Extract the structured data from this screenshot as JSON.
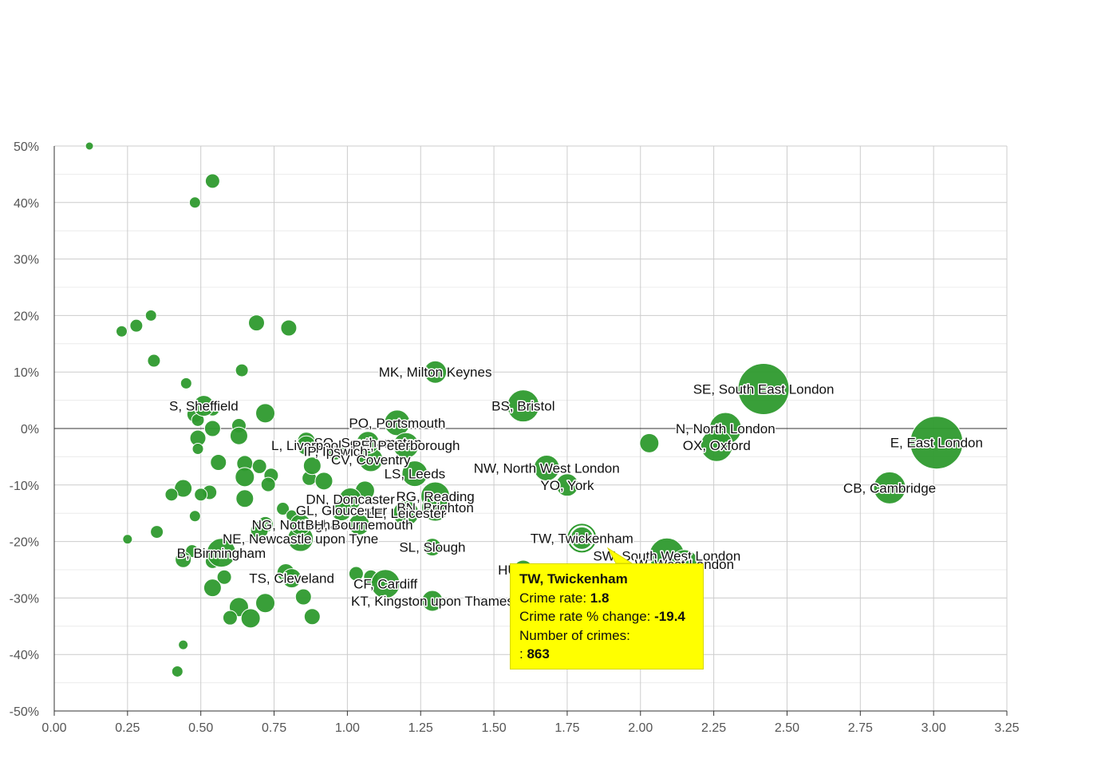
{
  "chart_data": {
    "type": "scatter",
    "variant": "bubble",
    "x_ticks": [
      "0.00",
      "0.25",
      "0.50",
      "0.75",
      "1.00",
      "1.25",
      "1.50",
      "1.75",
      "2.00",
      "2.25",
      "2.50",
      "2.75",
      "3.00",
      "3.25"
    ],
    "y_ticks": [
      "50%",
      "40%",
      "30%",
      "20%",
      "10%",
      "0%",
      "-10%",
      "-20%",
      "-30%",
      "-40%",
      "-50%"
    ],
    "xlim": [
      0,
      3.25
    ],
    "ylim": [
      -50,
      50
    ],
    "grid": true,
    "bubble_color": "#2e9a2e",
    "labeled_points": [
      {
        "label": "MK, Milton Keynes",
        "x": 1.3,
        "y": 10,
        "size": 14
      },
      {
        "label": "SE, South East London",
        "x": 2.42,
        "y": 7,
        "size": 32
      },
      {
        "label": "BS, Bristol",
        "x": 1.6,
        "y": 4,
        "size": 20
      },
      {
        "label": "S, Sheffield",
        "x": 0.51,
        "y": 4,
        "size": 13
      },
      {
        "label": "PO, Portsmouth",
        "x": 1.17,
        "y": 1,
        "size": 16
      },
      {
        "label": "N, North London",
        "x": 2.29,
        "y": 0,
        "size": 20
      },
      {
        "label": "OX, Oxford",
        "x": 2.26,
        "y": -3,
        "size": 20
      },
      {
        "label": "E, East London",
        "x": 3.01,
        "y": -2.5,
        "size": 33
      },
      {
        "label": "SO, Southampton",
        "x": 1.07,
        "y": -2.5,
        "size": 14
      },
      {
        "label": "PE, Peterborough",
        "x": 1.2,
        "y": -3,
        "size": 16
      },
      {
        "label": "L, Liverpool",
        "x": 0.86,
        "y": -3,
        "size": 12
      },
      {
        "label": "IP, Ipswich",
        "x": 0.96,
        "y": -4,
        "size": 11
      },
      {
        "label": "CV, Coventry",
        "x": 1.08,
        "y": -5.5,
        "size": 15
      },
      {
        "label": "NW, North West London",
        "x": 1.68,
        "y": -7,
        "size": 16
      },
      {
        "label": "LS, Leeds",
        "x": 1.23,
        "y": -8,
        "size": 16
      },
      {
        "label": "YO, York",
        "x": 1.75,
        "y": -10,
        "size": 14
      },
      {
        "label": "CB, Cambridge",
        "x": 2.85,
        "y": -10.5,
        "size": 20
      },
      {
        "label": "DN, Doncaster",
        "x": 1.01,
        "y": -12.5,
        "size": 14
      },
      {
        "label": "RG, Reading",
        "x": 1.3,
        "y": -12,
        "size": 18
      },
      {
        "label": "GL, Gloucester",
        "x": 0.98,
        "y": -14.5,
        "size": 13
      },
      {
        "label": "BN, Brighton",
        "x": 1.3,
        "y": -14,
        "size": 17
      },
      {
        "label": "LE, Leicester",
        "x": 1.2,
        "y": -15,
        "size": 16
      },
      {
        "label": "NG, Nottingham",
        "x": 0.84,
        "y": -17,
        "size": 13
      },
      {
        "label": "BH, Bournemouth",
        "x": 1.04,
        "y": -17,
        "size": 13
      },
      {
        "label": "NE, Newcastle upon Tyne",
        "x": 0.84,
        "y": -19.5,
        "size": 16
      },
      {
        "label": "TW, Twickenham",
        "x": 1.8,
        "y": -19.4,
        "size": 14
      },
      {
        "label": "SL, Slough",
        "x": 1.29,
        "y": -21,
        "size": 11
      },
      {
        "label": "B, Birmingham",
        "x": 0.57,
        "y": -22,
        "size": 18
      },
      {
        "label": "SW, South West London",
        "x": 2.09,
        "y": -22.5,
        "size": 22
      },
      {
        "label": "W, West London",
        "x": 2.15,
        "y": -24,
        "size": 18
      },
      {
        "label": "HU, Hull",
        "x": 1.6,
        "y": -25,
        "size": 12
      },
      {
        "label": "TS, Cleveland",
        "x": 0.81,
        "y": -26.5,
        "size": 12
      },
      {
        "label": "CF, Cardiff",
        "x": 1.13,
        "y": -27.5,
        "size": 18
      },
      {
        "label": "KT, Kingston upon Thames",
        "x": 1.29,
        "y": -30.5,
        "size": 13
      }
    ],
    "unlabeled_points": [
      [
        0.12,
        50,
        5
      ],
      [
        0.54,
        43.8,
        9
      ],
      [
        0.48,
        40,
        7
      ],
      [
        0.69,
        18.7,
        10
      ],
      [
        0.8,
        17.8,
        10
      ],
      [
        0.33,
        20,
        7
      ],
      [
        0.28,
        18.2,
        8
      ],
      [
        0.23,
        17.2,
        7
      ],
      [
        0.34,
        12,
        8
      ],
      [
        0.64,
        10.3,
        8
      ],
      [
        0.45,
        8,
        7
      ],
      [
        0.72,
        2.7,
        12
      ],
      [
        0.48,
        2.5,
        10
      ],
      [
        0.54,
        3.5,
        9
      ],
      [
        0.49,
        1.5,
        8
      ],
      [
        0.54,
        0,
        10
      ],
      [
        0.63,
        0.5,
        9
      ],
      [
        0.63,
        -1.3,
        11
      ],
      [
        0.49,
        -1.7,
        10
      ],
      [
        0.49,
        -3.6,
        7
      ],
      [
        0.56,
        -6,
        10
      ],
      [
        0.65,
        -6.2,
        10
      ],
      [
        0.7,
        -6.7,
        9
      ],
      [
        0.74,
        -8.3,
        9
      ],
      [
        0.65,
        -8.6,
        12
      ],
      [
        0.87,
        -8.8,
        9
      ],
      [
        0.92,
        -9.3,
        11
      ],
      [
        0.73,
        -9.9,
        9
      ],
      [
        0.44,
        -10.6,
        11
      ],
      [
        0.53,
        -11.3,
        9
      ],
      [
        0.5,
        -11.7,
        8
      ],
      [
        0.4,
        -11.7,
        8
      ],
      [
        0.65,
        -12.4,
        11
      ],
      [
        0.78,
        -14.2,
        8
      ],
      [
        0.81,
        -15.4,
        7
      ],
      [
        0.48,
        -15.5,
        7
      ],
      [
        0.72,
        -17,
        10
      ],
      [
        0.7,
        -18,
        11
      ],
      [
        0.35,
        -18.3,
        8
      ],
      [
        0.25,
        -19.6,
        6
      ],
      [
        0.47,
        -21.7,
        8
      ],
      [
        0.44,
        -23.2,
        10
      ],
      [
        0.54,
        -23.5,
        9
      ],
      [
        0.58,
        -26.3,
        9
      ],
      [
        0.54,
        -28.2,
        11
      ],
      [
        0.63,
        -31.6,
        12
      ],
      [
        0.72,
        -30.9,
        12
      ],
      [
        0.85,
        -29.8,
        10
      ],
      [
        0.6,
        -33.5,
        9
      ],
      [
        0.67,
        -33.6,
        12
      ],
      [
        0.88,
        -33.3,
        10
      ],
      [
        1.03,
        -25.7,
        9
      ],
      [
        1.08,
        -26.3,
        9
      ],
      [
        0.79,
        -25.5,
        11
      ],
      [
        0.44,
        -38.3,
        6
      ],
      [
        0.42,
        -43,
        7
      ],
      [
        2.03,
        -2.6,
        12
      ],
      [
        0.86,
        -2.2,
        11
      ],
      [
        0.88,
        -6.6,
        11
      ],
      [
        1.06,
        -11,
        12
      ]
    ],
    "highlighted": "TW, Twickenham"
  },
  "tooltip": {
    "title": "TW, Twickenham",
    "rate_label": "Crime rate: ",
    "rate_value": "1.8",
    "change_label": "Crime rate % change: ",
    "change_value": "-19.4",
    "count_label": "Number of crimes:",
    "count_prefix": ": ",
    "count_value": "863",
    "background": "#ffff00"
  }
}
